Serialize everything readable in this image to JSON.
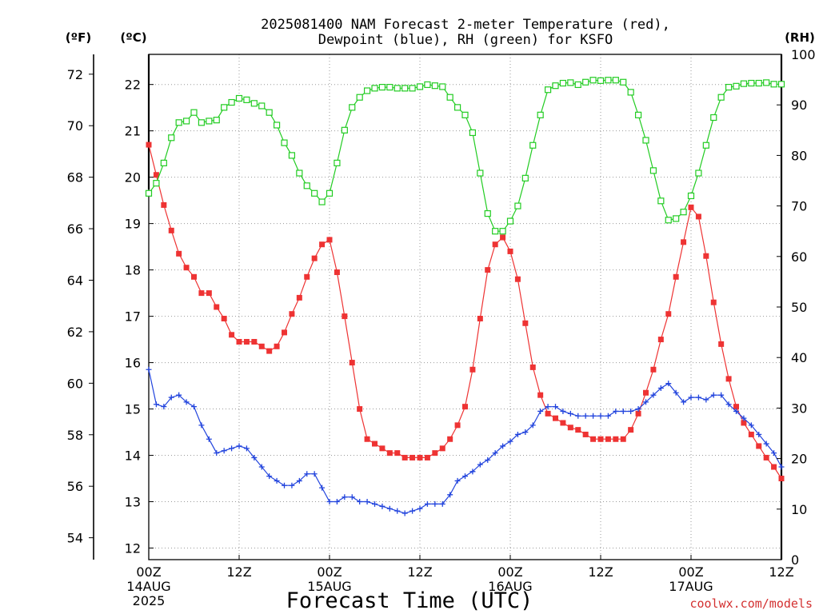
{
  "chart_data": {
    "type": "line",
    "title_line1": "2025081400 NAM Forecast 2-meter Temperature (red),",
    "title_line2": "Dewpoint (blue), RH (green) for KSFO",
    "xlabel": "Forecast Time (UTC)",
    "unit_f": "(ºF)",
    "unit_c": "(ºC)",
    "unit_rh": "(RH)",
    "credit": "coolwx.com/models",
    "grid": true,
    "x_range_hours": [
      0,
      84
    ],
    "x_ticks": [
      {
        "hour": 0,
        "label": "00Z",
        "date": "14AUG",
        "year": "2025"
      },
      {
        "hour": 12,
        "label": "12Z",
        "date": "",
        "year": ""
      },
      {
        "hour": 24,
        "label": "00Z",
        "date": "15AUG",
        "year": ""
      },
      {
        "hour": 36,
        "label": "12Z",
        "date": "",
        "year": ""
      },
      {
        "hour": 48,
        "label": "00Z",
        "date": "16AUG",
        "year": ""
      },
      {
        "hour": 60,
        "label": "12Z",
        "date": "",
        "year": ""
      },
      {
        "hour": 72,
        "label": "00Z",
        "date": "17AUG",
        "year": ""
      },
      {
        "hour": 84,
        "label": "12Z",
        "date": "",
        "year": ""
      }
    ],
    "c_axis": {
      "range": [
        11.75,
        22.65
      ],
      "ticks": [
        12,
        13,
        14,
        15,
        16,
        17,
        18,
        19,
        20,
        21,
        22
      ]
    },
    "f_axis": {
      "ticks": [
        54,
        56,
        58,
        60,
        62,
        64,
        66,
        68,
        70,
        72
      ]
    },
    "rh_axis": {
      "range": [
        0,
        100
      ],
      "ticks": [
        0,
        10,
        20,
        30,
        40,
        50,
        60,
        70,
        80,
        90,
        100
      ]
    },
    "series": [
      {
        "name": "Temperature",
        "color": "#ee3333",
        "marker": "filled-square",
        "axis": "C",
        "values": [
          20.7,
          20.05,
          19.4,
          18.85,
          18.35,
          18.05,
          17.85,
          17.5,
          17.5,
          17.2,
          16.95,
          16.6,
          16.45,
          16.45,
          16.45,
          16.35,
          16.25,
          16.35,
          16.65,
          17.05,
          17.4,
          17.85,
          18.25,
          18.55,
          18.65,
          17.95,
          17.0,
          16.0,
          15.0,
          14.35,
          14.25,
          14.15,
          14.05,
          14.05,
          13.95,
          13.95,
          13.95,
          13.95,
          14.05,
          14.15,
          14.35,
          14.65,
          15.05,
          15.85,
          16.95,
          18.0,
          18.55,
          18.7,
          18.4,
          17.8,
          16.85,
          15.9,
          15.3,
          14.9,
          14.8,
          14.7,
          14.6,
          14.55,
          14.45,
          14.35,
          14.35,
          14.35,
          14.35,
          14.35,
          14.55,
          14.9,
          15.35,
          15.85,
          16.5,
          17.05,
          17.85,
          18.6,
          19.35,
          19.15,
          18.3,
          17.3,
          16.4,
          15.65,
          15.05,
          14.7,
          14.45,
          14.2,
          13.95,
          13.75,
          13.5
        ]
      },
      {
        "name": "Dewpoint",
        "color": "#2244dd",
        "marker": "plus",
        "axis": "C",
        "values": [
          15.85,
          15.1,
          15.05,
          15.25,
          15.3,
          15.15,
          15.05,
          14.65,
          14.35,
          14.05,
          14.1,
          14.15,
          14.2,
          14.15,
          13.95,
          13.75,
          13.55,
          13.45,
          13.35,
          13.35,
          13.45,
          13.6,
          13.6,
          13.3,
          13.0,
          13.0,
          13.1,
          13.1,
          13.0,
          13.0,
          12.95,
          12.9,
          12.85,
          12.8,
          12.75,
          12.8,
          12.85,
          12.95,
          12.95,
          12.95,
          13.15,
          13.45,
          13.55,
          13.65,
          13.8,
          13.9,
          14.05,
          14.2,
          14.3,
          14.45,
          14.5,
          14.65,
          14.95,
          15.05,
          15.05,
          14.95,
          14.9,
          14.85,
          14.85,
          14.85,
          14.85,
          14.85,
          14.95,
          14.95,
          14.95,
          15.0,
          15.15,
          15.3,
          15.45,
          15.55,
          15.35,
          15.15,
          15.25,
          15.25,
          15.2,
          15.3,
          15.3,
          15.1,
          14.95,
          14.8,
          14.65,
          14.45,
          14.25,
          14.05,
          13.75
        ]
      },
      {
        "name": "RH",
        "color": "#22cc22",
        "marker": "open-square",
        "axis": "RH",
        "values": [
          72.5,
          74.5,
          78.5,
          83.5,
          86.5,
          86.8,
          88.5,
          86.5,
          86.8,
          87.0,
          89.5,
          90.5,
          91.3,
          91.0,
          90.3,
          89.8,
          88.5,
          86.0,
          82.5,
          80.0,
          76.5,
          74.0,
          72.5,
          70.8,
          72.5,
          78.5,
          85.0,
          89.5,
          91.5,
          92.8,
          93.3,
          93.5,
          93.5,
          93.3,
          93.3,
          93.3,
          93.6,
          94.0,
          93.8,
          93.6,
          91.5,
          89.5,
          88.0,
          84.5,
          76.5,
          68.5,
          65.0,
          65.0,
          67.0,
          70.0,
          75.5,
          82.0,
          88.0,
          93.0,
          93.8,
          94.3,
          94.4,
          94.0,
          94.5,
          94.9,
          94.8,
          94.9,
          94.9,
          94.5,
          92.5,
          88.0,
          83.0,
          77.0,
          71.0,
          67.2,
          67.5,
          68.8,
          72.0,
          76.5,
          82.0,
          87.5,
          91.5,
          93.5,
          93.7,
          94.2,
          94.3,
          94.3,
          94.4,
          94.1,
          94.1
        ]
      }
    ]
  }
}
